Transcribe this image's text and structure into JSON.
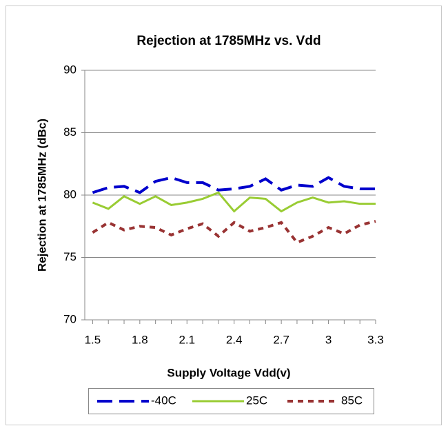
{
  "chart_data": {
    "type": "line",
    "title": "Rejection at 1785MHz vs. Vdd",
    "x_label": "Supply Voltage Vdd(v)",
    "y_label": "Rejection at 1785MHz (dBc)",
    "x": [
      1.5,
      1.6,
      1.7,
      1.8,
      1.9,
      2.0,
      2.1,
      2.2,
      2.3,
      2.4,
      2.5,
      2.6,
      2.7,
      2.8,
      2.9,
      3.0,
      3.1,
      3.2,
      3.3
    ],
    "series": [
      {
        "name": "-40C",
        "color": "#0000cc",
        "dash": "dashed",
        "values": [
          80.2,
          80.6,
          80.7,
          80.2,
          81.1,
          81.4,
          81.0,
          81.0,
          80.4,
          80.5,
          80.7,
          81.3,
          80.4,
          80.8,
          80.7,
          81.4,
          80.7,
          80.5,
          80.5
        ]
      },
      {
        "name": "25C",
        "color": "#99cc33",
        "dash": "solid",
        "values": [
          79.4,
          78.9,
          79.9,
          79.3,
          79.9,
          79.2,
          79.4,
          79.7,
          80.2,
          78.7,
          79.8,
          79.7,
          78.7,
          79.4,
          79.8,
          79.4,
          79.5,
          79.3,
          79.3
        ]
      },
      {
        "name": "85C",
        "color": "#993333",
        "dash": "dotted",
        "values": [
          77.0,
          77.8,
          77.2,
          77.5,
          77.4,
          76.8,
          77.3,
          77.7,
          76.7,
          77.8,
          77.1,
          77.4,
          77.8,
          76.2,
          76.7,
          77.4,
          76.9,
          77.6,
          77.9
        ]
      }
    ],
    "xlim": [
      1.45,
      3.3
    ],
    "xticks": [
      1.5,
      1.8,
      2.1,
      2.4,
      2.7,
      3,
      3.3
    ],
    "ylim": [
      70,
      90
    ],
    "yticks": [
      70,
      75,
      80,
      85,
      90
    ],
    "grid": true,
    "legend": "bottom"
  }
}
